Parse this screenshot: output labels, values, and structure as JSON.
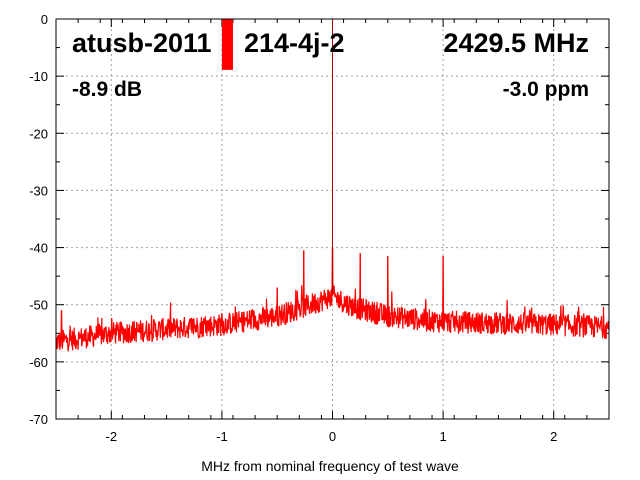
{
  "chart_data": {
    "type": "line",
    "title_left": "atusb-2011",
    "title_left_suffix": "214-4j-2",
    "title_right": "2429.5 MHz",
    "subtitle_left": "-8.9 dB",
    "subtitle_right": "-3.0 ppm",
    "xlabel": "MHz from nominal frequency of test wave",
    "ylabel": "",
    "xlim": [
      -2.5,
      2.5
    ],
    "ylim": [
      -70,
      0
    ],
    "xticks": [
      -2,
      -1,
      0,
      1,
      2
    ],
    "xtick_labels": [
      "-2",
      "-1",
      "0",
      "1",
      "2"
    ],
    "yticks": [
      0,
      -10,
      -20,
      -30,
      -40,
      -50,
      -60,
      -70
    ],
    "ytick_labels": [
      "0",
      "-10",
      "-20",
      "-30",
      "-40",
      "-50",
      "-60",
      "-70"
    ],
    "grid": true,
    "series_color": "#ff0000",
    "noise_floor": [
      [
        -2.5,
        -56.5
      ],
      [
        -2.0,
        -55
      ],
      [
        -1.0,
        -53.5
      ],
      [
        -0.5,
        -52
      ],
      [
        -0.2,
        -50
      ],
      [
        0.0,
        -48.5
      ],
      [
        0.2,
        -50.5
      ],
      [
        0.5,
        -52
      ],
      [
        1.0,
        -53
      ],
      [
        2.0,
        -53.5
      ],
      [
        2.5,
        -54
      ]
    ],
    "noise_amplitude_db": 2,
    "peaks": [
      [
        -2.45,
        -51
      ],
      [
        -1.0,
        -51.5
      ],
      [
        -0.75,
        -51
      ],
      [
        -0.5,
        -47
      ],
      [
        -0.26,
        -40.5
      ],
      [
        0.0,
        -40
      ],
      [
        0.25,
        -41
      ],
      [
        0.5,
        -41.5
      ],
      [
        1.0,
        -41.5
      ],
      [
        1.8,
        -50.5
      ]
    ],
    "carrier": {
      "x": 0.0,
      "y": 0
    },
    "level_bar": {
      "x0": -1.0,
      "x1": -0.9,
      "top": 0,
      "bottom": -8.9,
      "color": "#ff0000"
    }
  }
}
